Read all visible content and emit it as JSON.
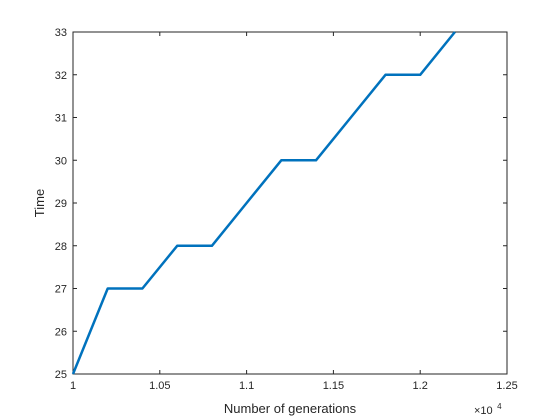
{
  "chart_data": {
    "type": "line",
    "xlabel": "Number of generations",
    "ylabel": "Time",
    "x_exponent_base": "×10",
    "x_exponent_power": "4",
    "xlim": [
      1,
      1.25
    ],
    "ylim": [
      25,
      33
    ],
    "xticks": [
      1,
      1.05,
      1.1,
      1.15,
      1.2,
      1.25
    ],
    "xtick_labels": [
      "1",
      "1.05",
      "1.1",
      "1.15",
      "1.2",
      "1.25"
    ],
    "yticks": [
      25,
      26,
      27,
      28,
      29,
      30,
      31,
      32,
      33
    ],
    "ytick_labels": [
      "25",
      "26",
      "27",
      "28",
      "29",
      "30",
      "31",
      "32",
      "33"
    ],
    "grid": false,
    "series": [
      {
        "color": "#0072bd",
        "x": [
          1,
          1.02,
          1.04,
          1.06,
          1.08,
          1.1,
          1.12,
          1.14,
          1.16,
          1.18,
          1.2,
          1.22
        ],
        "y": [
          25,
          27,
          27,
          28,
          28,
          29,
          30,
          30,
          31,
          32,
          32,
          33
        ]
      }
    ]
  }
}
